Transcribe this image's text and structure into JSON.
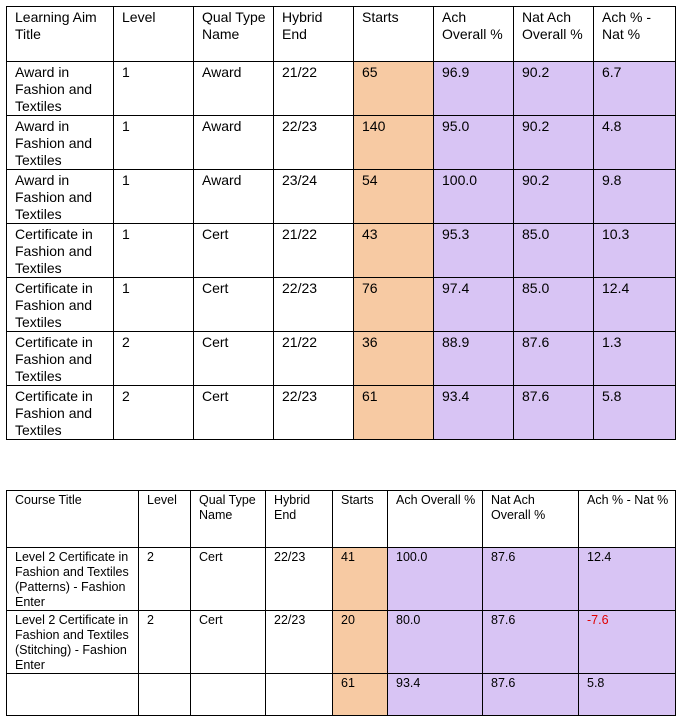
{
  "table1": {
    "header": [
      "Learning Aim Title",
      "Level",
      "Qual Type Name",
      "Hybrid End",
      "Starts",
      "Ach Overall %",
      "Nat Ach Overall %",
      "Ach % - Nat %"
    ],
    "rows": [
      [
        "Award in Fashion and Textiles",
        "1",
        "Award",
        "21/22",
        "65",
        "96.9",
        "90.2",
        "6.7"
      ],
      [
        "Award in Fashion and Textiles",
        "1",
        "Award",
        "22/23",
        "140",
        "95.0",
        "90.2",
        "4.8"
      ],
      [
        "Award in Fashion and Textiles",
        "1",
        "Award",
        "23/24",
        "54",
        "100.0",
        "90.2",
        "9.8"
      ],
      [
        "Certificate in Fashion and Textiles",
        "1",
        "Cert",
        "21/22",
        "43",
        "95.3",
        "85.0",
        "10.3"
      ],
      [
        "Certificate in Fashion and Textiles",
        "1",
        "Cert",
        "22/23",
        "76",
        "97.4",
        "85.0",
        "12.4"
      ],
      [
        "Certificate in Fashion and Textiles",
        "2",
        "Cert",
        "21/22",
        "36",
        "88.9",
        "87.6",
        "1.3"
      ],
      [
        "Certificate in Fashion and Textiles",
        "2",
        "Cert",
        "22/23",
        "61",
        "93.4",
        "87.6",
        "5.8"
      ]
    ]
  },
  "table2": {
    "header": [
      "Course Title",
      "Level",
      "Qual Type Name",
      "Hybrid End",
      "Starts",
      "Ach Overall %",
      "Nat Ach Overall %",
      "Ach % - Nat %"
    ],
    "rows": [
      [
        "Level 2 Certificate in Fashion and Textiles (Patterns) - Fashion Enter",
        "2",
        "Cert",
        "22/23",
        "41",
        "100.0",
        "87.6",
        "12.4"
      ],
      [
        "Level 2 Certificate in Fashion and Textiles (Stitching) - Fashion Enter",
        "2",
        "Cert",
        "22/23",
        "20",
        "80.0",
        "87.6",
        "-7.6"
      ]
    ],
    "total": [
      "61",
      "93.4",
      "87.6",
      "5.8"
    ]
  }
}
